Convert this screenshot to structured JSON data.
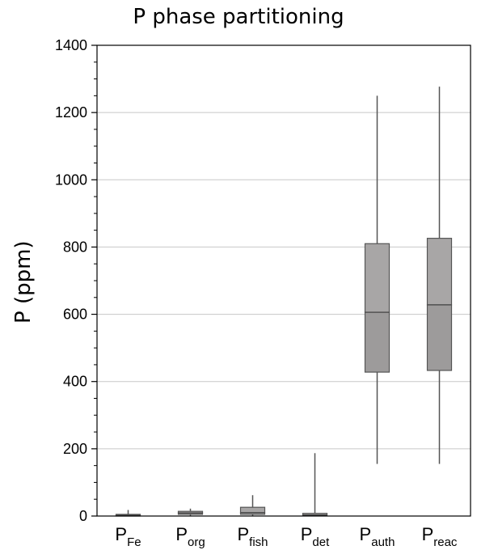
{
  "chart_data": {
    "type": "boxplot",
    "title": "P phase partitioning",
    "ylabel": "P (ppm)",
    "xlabel": "",
    "ylim": [
      0,
      1400
    ],
    "yticks": [
      0,
      200,
      400,
      600,
      800,
      1000,
      1200,
      1400
    ],
    "grid": true,
    "categories": [
      {
        "base": "P",
        "sub": "Fe"
      },
      {
        "base": "P",
        "sub": "org"
      },
      {
        "base": "P",
        "sub": "fish"
      },
      {
        "base": "P",
        "sub": "det"
      },
      {
        "base": "P",
        "sub": "auth"
      },
      {
        "base": "P",
        "sub": "reac"
      }
    ],
    "boxes": [
      {
        "min": 0,
        "q1": 0,
        "median": 2,
        "q3": 5,
        "max": 18
      },
      {
        "min": 0,
        "q1": 5,
        "median": 9,
        "q3": 14,
        "max": 22
      },
      {
        "min": 0,
        "q1": 5,
        "median": 10,
        "q3": 26,
        "max": 62
      },
      {
        "min": 0,
        "q1": 1,
        "median": 3,
        "q3": 8,
        "max": 187
      },
      {
        "min": 155,
        "q1": 428,
        "median": 606,
        "q3": 810,
        "max": 1250
      },
      {
        "min": 155,
        "q1": 433,
        "median": 628,
        "q3": 826,
        "max": 1277
      }
    ],
    "colors": {
      "upper_box": "#a8a6a6",
      "lower_box": "#9d9b9b",
      "whisker": "#555555",
      "grid": "#c8c8c8",
      "axis": "#000000"
    }
  }
}
